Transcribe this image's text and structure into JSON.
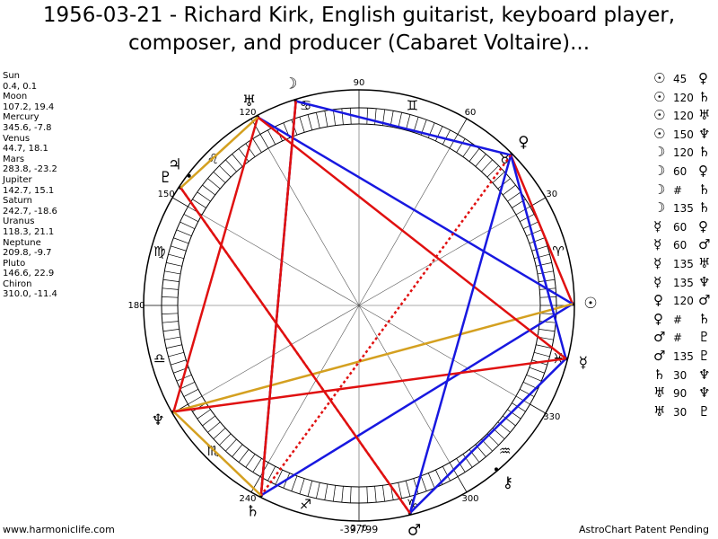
{
  "header": {
    "title": "1956-03-21 - Richard Kirk, English guitarist, keyboard player, composer, and producer (Cabaret Voltaire)..."
  },
  "planets": [
    {
      "name": "Sun",
      "coords": "0.4, 0.1",
      "glyph": "☉"
    },
    {
      "name": "Moon",
      "coords": "107.2, 19.4",
      "glyph": "☽"
    },
    {
      "name": "Mercury",
      "coords": "345.6, -7.8",
      "glyph": "☿"
    },
    {
      "name": "Venus",
      "coords": "44.7, 18.1",
      "glyph": "♀"
    },
    {
      "name": "Mars",
      "coords": "283.8, -23.2",
      "glyph": "♂"
    },
    {
      "name": "Jupiter",
      "coords": "142.7, 15.1",
      "glyph": "♃"
    },
    {
      "name": "Saturn",
      "coords": "242.7, -18.6",
      "glyph": "♄"
    },
    {
      "name": "Uranus",
      "coords": "118.3, 21.1",
      "glyph": "♅"
    },
    {
      "name": "Neptune",
      "coords": "209.8, -9.7",
      "glyph": "♆"
    },
    {
      "name": "Pluto",
      "coords": "146.6, 22.9",
      "glyph": "♇"
    },
    {
      "name": "Chiron",
      "coords": "310.0, -11.4",
      "glyph": "⚷"
    }
  ],
  "aspects": [
    {
      "from": "☉",
      "aspect": 45,
      "to": "♀",
      "color": "#e01010"
    },
    {
      "from": "☉",
      "aspect": 120,
      "to": "♄",
      "color": "#1818e0"
    },
    {
      "from": "☉",
      "aspect": 120,
      "to": "♅",
      "color": "#1818e0"
    },
    {
      "from": "☉",
      "aspect": 150,
      "to": "♆",
      "color": "#d4a020"
    },
    {
      "from": "☽",
      "aspect": 120,
      "to": "♄",
      "color": "#1818e0"
    },
    {
      "from": "☽",
      "aspect": 60,
      "to": "♀",
      "color": "#1818e0"
    },
    {
      "from": "☽",
      "aspect": "#",
      "to": "♄",
      "color": "#e01010"
    },
    {
      "from": "☽",
      "aspect": 135,
      "to": "♄",
      "color": "#e01010"
    },
    {
      "from": "☿",
      "aspect": 60,
      "to": "♀",
      "color": "#1818e0"
    },
    {
      "from": "☿",
      "aspect": 60,
      "to": "♂",
      "color": "#1818e0"
    },
    {
      "from": "☿",
      "aspect": 135,
      "to": "♅",
      "color": "#e01010"
    },
    {
      "from": "☿",
      "aspect": 135,
      "to": "♆",
      "color": "#e01010"
    },
    {
      "from": "♀",
      "aspect": 120,
      "to": "♂",
      "color": "#1818e0"
    },
    {
      "from": "♀",
      "aspect": "#",
      "to": "♄",
      "color": "#e01010"
    },
    {
      "from": "♂",
      "aspect": "#",
      "to": "♇",
      "color": "#e01010"
    },
    {
      "from": "♂",
      "aspect": 135,
      "to": "♇",
      "color": "#e01010"
    },
    {
      "from": "♄",
      "aspect": 30,
      "to": "♆",
      "color": "#d4a020"
    },
    {
      "from": "♅",
      "aspect": 90,
      "to": "♆",
      "color": "#e01010"
    },
    {
      "from": "♅",
      "aspect": 30,
      "to": "♇",
      "color": "#d4a020"
    }
  ],
  "signs": [
    "♈",
    "♉",
    "♊",
    "♋",
    "♌",
    "♍",
    "♎",
    "♏",
    "♐",
    "♑",
    "♒",
    "♓"
  ],
  "degree_labels": [
    30,
    60,
    90,
    120,
    150,
    180,
    240,
    270,
    300,
    330
  ],
  "footer": {
    "left": "www.harmoniclife.com",
    "center": "-39,799",
    "right": "AstroChart Patent Pending"
  }
}
